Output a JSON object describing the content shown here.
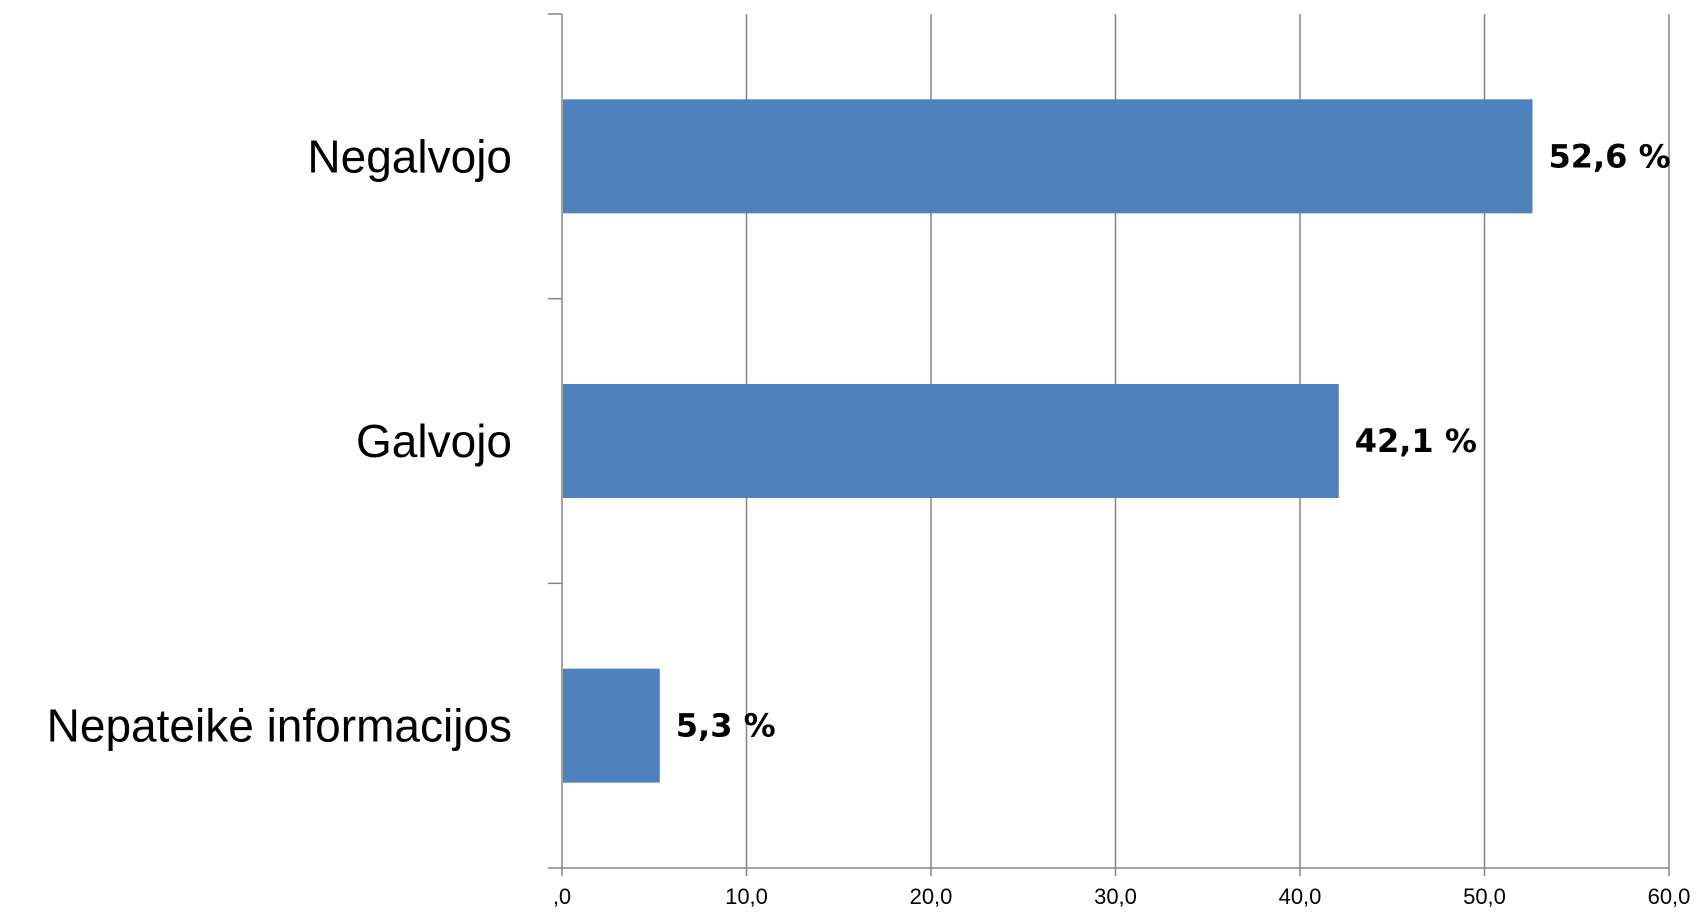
{
  "chart_data": {
    "type": "bar",
    "orientation": "horizontal",
    "categories": [
      "Negalvojo",
      "Galvojo",
      "Nepateikė informacijos"
    ],
    "values": [
      52.6,
      42.1,
      5.3
    ],
    "data_labels": [
      "52,6 %",
      "42,1 %",
      "5,3 %"
    ],
    "xlim": [
      0,
      60
    ],
    "x_ticks": [
      0,
      10,
      20,
      30,
      40,
      50,
      60
    ],
    "x_tick_labels": [
      ",0",
      "10,0",
      "20,0",
      "30,0",
      "40,0",
      "50,0",
      "60,0"
    ],
    "grid": "vertical",
    "bar_color": "#4F81BD",
    "grid_color": "#868686",
    "title": "",
    "xlabel": "",
    "ylabel": ""
  }
}
